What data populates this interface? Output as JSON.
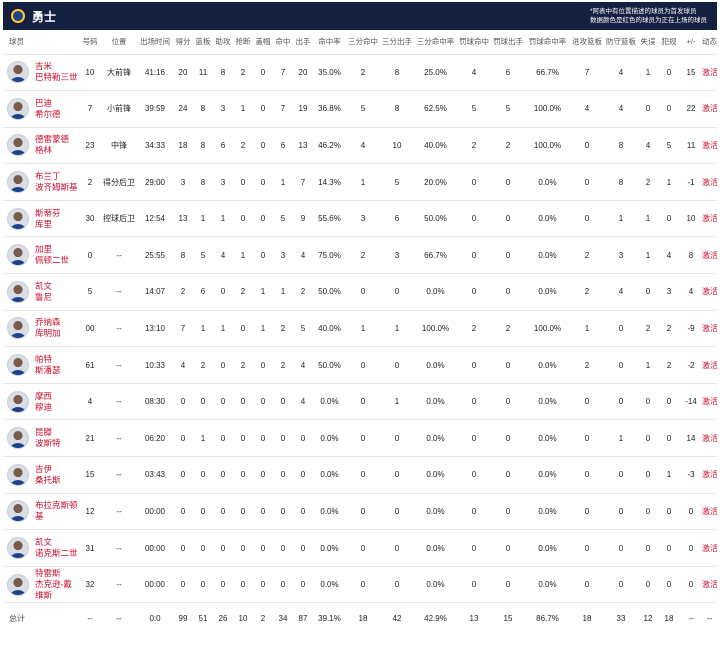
{
  "header": {
    "team_name": "勇士",
    "note_line1": "*阿表中有位置描述的球员为首发球员",
    "note_line2": "数据颜色是红色的球员为正在上场的球员"
  },
  "columns": [
    "球员",
    "号码",
    "位置",
    "出场时间",
    "得分",
    "篮板",
    "助攻",
    "抢断",
    "盖帽",
    "命中",
    "出手",
    "命中率",
    "三分命中",
    "三分出手",
    "三分命中率",
    "罚球命中",
    "罚球出手",
    "罚球命中率",
    "进攻篮板",
    "防守篮板",
    "失误",
    "犯规",
    "+/-",
    "动态"
  ],
  "players": [
    {
      "name_line1": "吉米",
      "name_line2": "巴特勒三世",
      "number": "10",
      "position": "大前锋",
      "min": "41:16",
      "pts": "20",
      "reb": "11",
      "ast": "8",
      "stl": "2",
      "blk": "0",
      "fgm": "7",
      "fga": "20",
      "fgp": "35.0%",
      "tpm": "2",
      "tpa": "8",
      "tpp": "25.0%",
      "ftm": "4",
      "fta": "6",
      "ftp": "66.7%",
      "oreb": "7",
      "dreb": "4",
      "tov": "1",
      "pf": "0",
      "pm": "15",
      "action": "激活"
    },
    {
      "name_line1": "巴迪",
      "name_line2": "希尔德",
      "number": "7",
      "position": "小前锋",
      "min": "39:59",
      "pts": "24",
      "reb": "8",
      "ast": "3",
      "stl": "1",
      "blk": "0",
      "fgm": "7",
      "fga": "19",
      "fgp": "36.8%",
      "tpm": "5",
      "tpa": "8",
      "tpp": "62.5%",
      "ftm": "5",
      "fta": "5",
      "ftp": "100.0%",
      "oreb": "4",
      "dreb": "4",
      "tov": "0",
      "pf": "0",
      "pm": "22",
      "action": "激活"
    },
    {
      "name_line1": "德雷蒙德",
      "name_line2": "格林",
      "number": "23",
      "position": "中锋",
      "min": "34:33",
      "pts": "18",
      "reb": "8",
      "ast": "6",
      "stl": "2",
      "blk": "0",
      "fgm": "6",
      "fga": "13",
      "fgp": "46.2%",
      "tpm": "4",
      "tpa": "10",
      "tpp": "40.0%",
      "ftm": "2",
      "fta": "2",
      "ftp": "100.0%",
      "oreb": "0",
      "dreb": "8",
      "tov": "4",
      "pf": "5",
      "pm": "11",
      "action": "激活"
    },
    {
      "name_line1": "布兰丁",
      "name_line2": "波齐姆斯基",
      "number": "2",
      "position": "得分后卫",
      "min": "29:00",
      "pts": "3",
      "reb": "8",
      "ast": "3",
      "stl": "0",
      "blk": "0",
      "fgm": "1",
      "fga": "7",
      "fgp": "14.3%",
      "tpm": "1",
      "tpa": "5",
      "tpp": "20.0%",
      "ftm": "0",
      "fta": "0",
      "ftp": "0.0%",
      "oreb": "0",
      "dreb": "8",
      "tov": "2",
      "pf": "1",
      "pm": "-1",
      "action": "激活"
    },
    {
      "name_line1": "斯蒂芬",
      "name_line2": "库里",
      "number": "30",
      "position": "控球后卫",
      "min": "12:54",
      "pts": "13",
      "reb": "1",
      "ast": "1",
      "stl": "0",
      "blk": "0",
      "fgm": "5",
      "fga": "9",
      "fgp": "55.6%",
      "tpm": "3",
      "tpa": "6",
      "tpp": "50.0%",
      "ftm": "0",
      "fta": "0",
      "ftp": "0.0%",
      "oreb": "0",
      "dreb": "1",
      "tov": "1",
      "pf": "0",
      "pm": "10",
      "action": "激活"
    },
    {
      "name_line1": "加里",
      "name_line2": "佩顿二世",
      "number": "0",
      "position": "--",
      "min": "25:55",
      "pts": "8",
      "reb": "5",
      "ast": "4",
      "stl": "1",
      "blk": "0",
      "fgm": "3",
      "fga": "4",
      "fgp": "75.0%",
      "tpm": "2",
      "tpa": "3",
      "tpp": "66.7%",
      "ftm": "0",
      "fta": "0",
      "ftp": "0.0%",
      "oreb": "2",
      "dreb": "3",
      "tov": "1",
      "pf": "4",
      "pm": "8",
      "action": "激活"
    },
    {
      "name_line1": "凯文",
      "name_line2": "鲁尼",
      "number": "5",
      "position": "--",
      "min": "14:07",
      "pts": "2",
      "reb": "6",
      "ast": "0",
      "stl": "2",
      "blk": "1",
      "fgm": "1",
      "fga": "2",
      "fgp": "50.0%",
      "tpm": "0",
      "tpa": "0",
      "tpp": "0.0%",
      "ftm": "0",
      "fta": "0",
      "ftp": "0.0%",
      "oreb": "2",
      "dreb": "4",
      "tov": "0",
      "pf": "3",
      "pm": "4",
      "action": "激活"
    },
    {
      "name_line1": "乔纳森",
      "name_line2": "库明加",
      "number": "00",
      "position": "--",
      "min": "13:10",
      "pts": "7",
      "reb": "1",
      "ast": "1",
      "stl": "0",
      "blk": "1",
      "fgm": "2",
      "fga": "5",
      "fgp": "40.0%",
      "tpm": "1",
      "tpa": "1",
      "tpp": "100.0%",
      "ftm": "2",
      "fta": "2",
      "ftp": "100.0%",
      "oreb": "1",
      "dreb": "0",
      "tov": "2",
      "pf": "2",
      "pm": "-9",
      "action": "激活"
    },
    {
      "name_line1": "帕特",
      "name_line2": "斯潘瑟",
      "number": "61",
      "position": "--",
      "min": "10:33",
      "pts": "4",
      "reb": "2",
      "ast": "0",
      "stl": "2",
      "blk": "0",
      "fgm": "2",
      "fga": "4",
      "fgp": "50.0%",
      "tpm": "0",
      "tpa": "0",
      "tpp": "0.0%",
      "ftm": "0",
      "fta": "0",
      "ftp": "0.0%",
      "oreb": "2",
      "dreb": "0",
      "tov": "1",
      "pf": "2",
      "pm": "-2",
      "action": "激活"
    },
    {
      "name_line1": "摩西",
      "name_line2": "穆迪",
      "number": "4",
      "position": "--",
      "min": "08:30",
      "pts": "0",
      "reb": "0",
      "ast": "0",
      "stl": "0",
      "blk": "0",
      "fgm": "0",
      "fga": "4",
      "fgp": "0.0%",
      "tpm": "0",
      "tpa": "1",
      "tpp": "0.0%",
      "ftm": "0",
      "fta": "0",
      "ftp": "0.0%",
      "oreb": "0",
      "dreb": "0",
      "tov": "0",
      "pf": "0",
      "pm": "-14",
      "action": "激活"
    },
    {
      "name_line1": "昆滕",
      "name_line2": "波斯特",
      "number": "21",
      "position": "--",
      "min": "06:20",
      "pts": "0",
      "reb": "1",
      "ast": "0",
      "stl": "0",
      "blk": "0",
      "fgm": "0",
      "fga": "0",
      "fgp": "0.0%",
      "tpm": "0",
      "tpa": "0",
      "tpp": "0.0%",
      "ftm": "0",
      "fta": "0",
      "ftp": "0.0%",
      "oreb": "0",
      "dreb": "1",
      "tov": "0",
      "pf": "0",
      "pm": "14",
      "action": "激活"
    },
    {
      "name_line1": "吉伊",
      "name_line2": "桑托斯",
      "number": "15",
      "position": "--",
      "min": "03:43",
      "pts": "0",
      "reb": "0",
      "ast": "0",
      "stl": "0",
      "blk": "0",
      "fgm": "0",
      "fga": "0",
      "fgp": "0.0%",
      "tpm": "0",
      "tpa": "0",
      "tpp": "0.0%",
      "ftm": "0",
      "fta": "0",
      "ftp": "0.0%",
      "oreb": "0",
      "dreb": "0",
      "tov": "0",
      "pf": "1",
      "pm": "-3",
      "action": "激活"
    },
    {
      "name_line1": "布拉克斯顿",
      "name_line2": "基",
      "number": "12",
      "position": "--",
      "min": "00:00",
      "pts": "0",
      "reb": "0",
      "ast": "0",
      "stl": "0",
      "blk": "0",
      "fgm": "0",
      "fga": "0",
      "fgp": "0.0%",
      "tpm": "0",
      "tpa": "0",
      "tpp": "0.0%",
      "ftm": "0",
      "fta": "0",
      "ftp": "0.0%",
      "oreb": "0",
      "dreb": "0",
      "tov": "0",
      "pf": "0",
      "pm": "0",
      "action": "激活"
    },
    {
      "name_line1": "凯文",
      "name_line2": "诺克斯二世",
      "number": "31",
      "position": "--",
      "min": "00:00",
      "pts": "0",
      "reb": "0",
      "ast": "0",
      "stl": "0",
      "blk": "0",
      "fgm": "0",
      "fga": "0",
      "fgp": "0.0%",
      "tpm": "0",
      "tpa": "0",
      "tpp": "0.0%",
      "ftm": "0",
      "fta": "0",
      "ftp": "0.0%",
      "oreb": "0",
      "dreb": "0",
      "tov": "0",
      "pf": "0",
      "pm": "0",
      "action": "激活"
    },
    {
      "name_line1": "特雷斯",
      "name_line2": "杰克逊-戴维斯",
      "number": "32",
      "position": "--",
      "min": "00:00",
      "pts": "0",
      "reb": "0",
      "ast": "0",
      "stl": "0",
      "blk": "0",
      "fgm": "0",
      "fga": "0",
      "fgp": "0.0%",
      "tpm": "0",
      "tpa": "0",
      "tpp": "0.0%",
      "ftm": "0",
      "fta": "0",
      "ftp": "0.0%",
      "oreb": "0",
      "dreb": "0",
      "tov": "0",
      "pf": "0",
      "pm": "0",
      "action": "激活"
    }
  ],
  "totals": {
    "label": "总计",
    "number": "--",
    "position": "--",
    "min": "0:0",
    "pts": "99",
    "reb": "51",
    "ast": "26",
    "stl": "10",
    "blk": "2",
    "fgm": "34",
    "fga": "87",
    "fgp": "39.1%",
    "tpm": "18",
    "tpa": "42",
    "tpp": "42.9%",
    "ftm": "13",
    "fta": "15",
    "ftp": "86.7%",
    "oreb": "18",
    "dreb": "33",
    "tov": "12",
    "pf": "18",
    "pm": "--",
    "action": "--"
  },
  "colors": {
    "header_bg": "#13203f",
    "active_red": "#c8102e",
    "team_blue": "#1d428a",
    "team_gold": "#ffc72c"
  }
}
